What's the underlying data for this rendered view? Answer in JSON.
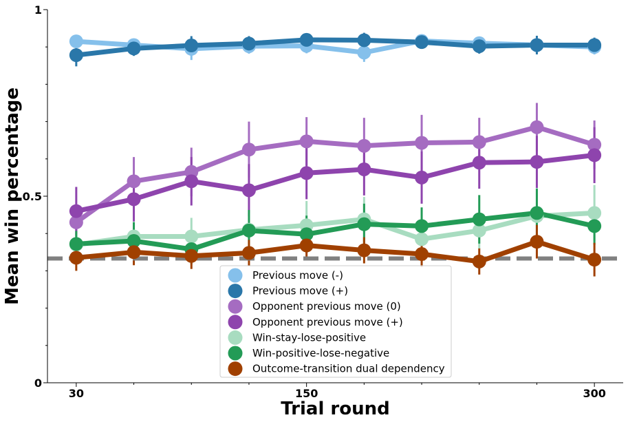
{
  "chart_data": {
    "type": "line",
    "xlabel": "Trial round",
    "ylabel": "Mean win percentage",
    "x": [
      30,
      60,
      90,
      120,
      150,
      180,
      210,
      240,
      270,
      300
    ],
    "xticks": [
      30,
      150,
      300
    ],
    "xlim": [
      15,
      315
    ],
    "ylim": [
      0,
      1
    ],
    "yticks": [
      0,
      0.5,
      1
    ],
    "ytick_labels": [
      "0",
      "0.5",
      "1"
    ],
    "chance_level": 0.333,
    "legend_position": "lower-center",
    "grid": false,
    "series": [
      {
        "name": "Previous move (-)",
        "color": "#85c0eb",
        "values": [
          0.915,
          0.905,
          0.895,
          0.902,
          0.903,
          0.885,
          0.916,
          0.91,
          0.905,
          0.9
        ],
        "err": [
          0.015,
          0.015,
          0.03,
          0.02,
          0.02,
          0.025,
          0.015,
          0.015,
          0.02,
          0.02
        ]
      },
      {
        "name": "Previous move (+)",
        "color": "#2a77a9",
        "values": [
          0.878,
          0.896,
          0.904,
          0.909,
          0.919,
          0.918,
          0.913,
          0.902,
          0.905,
          0.905
        ],
        "err": [
          0.03,
          0.02,
          0.025,
          0.02,
          0.015,
          0.02,
          0.015,
          0.02,
          0.025,
          0.02
        ]
      },
      {
        "name": "Opponent previous move (0)",
        "color": "#a56cc1",
        "values": [
          0.43,
          0.54,
          0.565,
          0.625,
          0.647,
          0.635,
          0.643,
          0.645,
          0.685,
          0.638
        ],
        "err": [
          0.04,
          0.065,
          0.065,
          0.075,
          0.065,
          0.075,
          0.075,
          0.065,
          0.065,
          0.065
        ]
      },
      {
        "name": "Opponent previous move (+)",
        "color": "#8e44ad",
        "values": [
          0.46,
          0.492,
          0.54,
          0.516,
          0.562,
          0.572,
          0.55,
          0.59,
          0.592,
          0.61
        ],
        "err": [
          0.065,
          0.06,
          0.065,
          0.07,
          0.07,
          0.07,
          0.07,
          0.07,
          0.07,
          0.075
        ]
      },
      {
        "name": "Win-stay-lose-positive",
        "color": "#a8dcc0",
        "values": [
          0.37,
          0.392,
          0.392,
          0.41,
          0.422,
          0.438,
          0.385,
          0.408,
          0.447,
          0.455
        ],
        "err": [
          0.03,
          0.04,
          0.05,
          0.045,
          0.065,
          0.06,
          0.05,
          0.05,
          0.075,
          0.075
        ]
      },
      {
        "name": "Win-positive-lose-negative",
        "color": "#239b56",
        "values": [
          0.372,
          0.38,
          0.358,
          0.408,
          0.398,
          0.425,
          0.42,
          0.438,
          0.455,
          0.42
        ],
        "err": [
          0.035,
          0.05,
          0.04,
          0.055,
          0.05,
          0.055,
          0.05,
          0.065,
          0.065,
          0.05
        ]
      },
      {
        "name": "Outcome-transition dual dependency",
        "color": "#a04000",
        "values": [
          0.335,
          0.35,
          0.34,
          0.348,
          0.368,
          0.355,
          0.345,
          0.325,
          0.378,
          0.33
        ],
        "err": [
          0.035,
          0.035,
          0.035,
          0.035,
          0.035,
          0.035,
          0.035,
          0.035,
          0.045,
          0.045
        ]
      }
    ]
  }
}
